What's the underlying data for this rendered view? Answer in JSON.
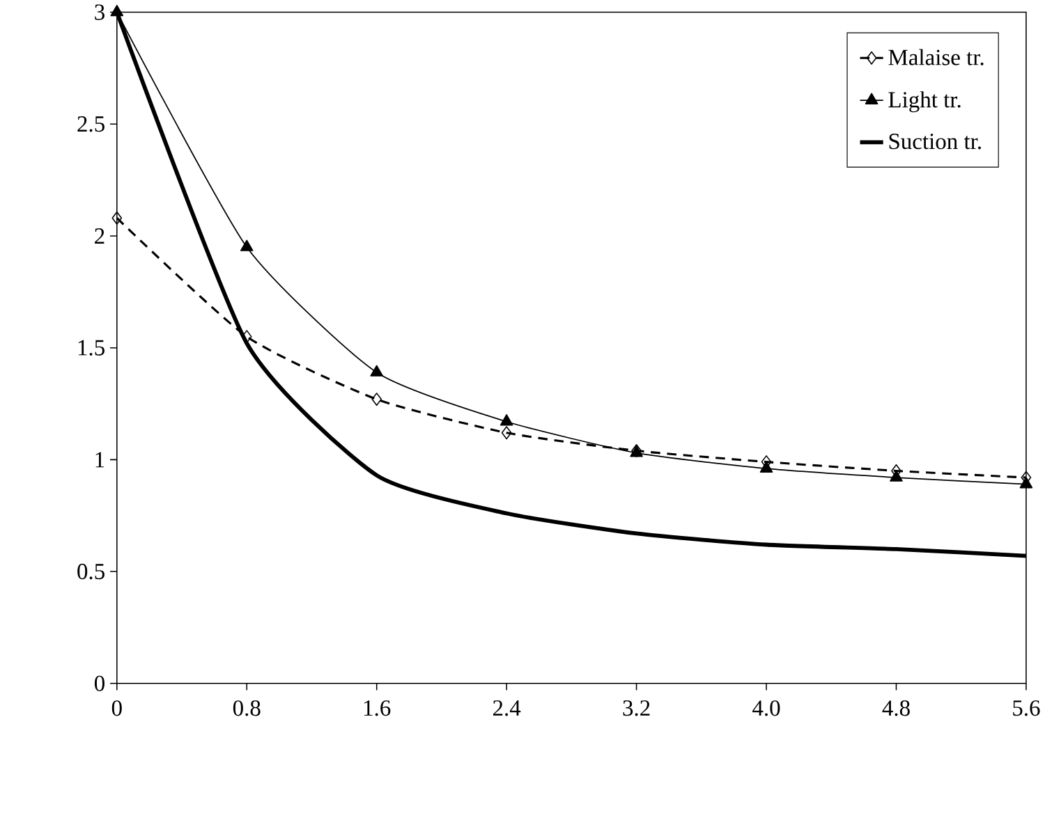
{
  "chart_data": {
    "type": "line",
    "x": [
      0,
      0.8,
      1.6,
      2.4,
      3.2,
      4.0,
      4.8,
      5.6
    ],
    "series": [
      {
        "name": "Malaise tr.",
        "color": "#000000",
        "marker": "diamond",
        "line_style": "dashed",
        "values": [
          2.08,
          1.55,
          1.27,
          1.12,
          1.04,
          0.99,
          0.95,
          0.92
        ]
      },
      {
        "name": "Light tr.",
        "color": "#000000",
        "marker": "triangle",
        "line_style": "solid",
        "values": [
          3.0,
          1.95,
          1.39,
          1.17,
          1.03,
          0.96,
          0.92,
          0.89
        ]
      },
      {
        "name": "Suction tr.",
        "color": "#000000",
        "marker": "none",
        "line_style": "solid",
        "values": [
          3.0,
          1.52,
          0.93,
          0.76,
          0.67,
          0.62,
          0.6,
          0.57
        ]
      }
    ],
    "xlim": [
      0,
      5.6
    ],
    "xticks": [
      0,
      0.8,
      1.6,
      2.4,
      3.2,
      {
        "value": 4.0,
        "label": "4.0"
      },
      4.8,
      5.6
    ],
    "ylim": [
      0,
      3
    ],
    "yticks": [
      0,
      0.5,
      1,
      1.5,
      2,
      2.5,
      3
    ],
    "grid": false,
    "legend": "top right"
  }
}
